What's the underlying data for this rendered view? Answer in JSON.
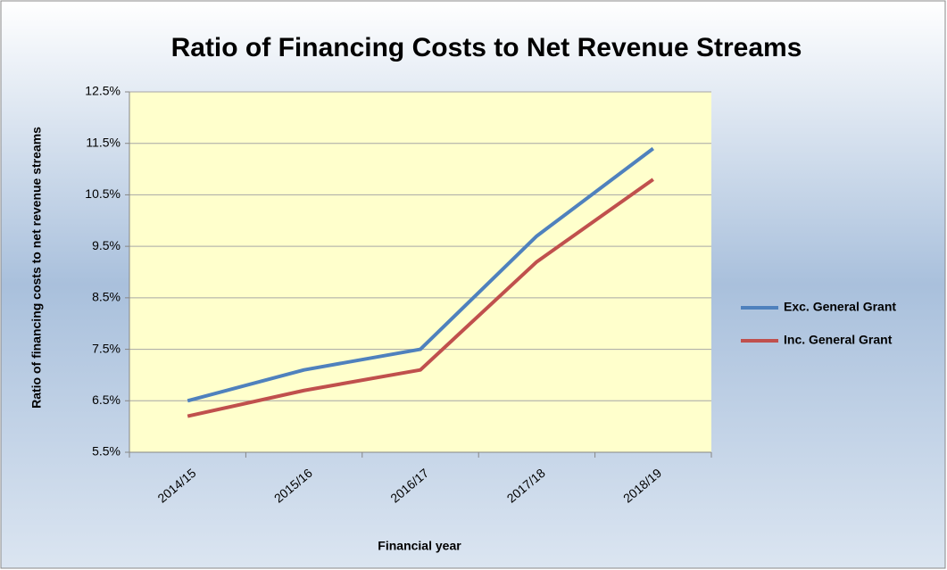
{
  "chart_data": {
    "type": "line",
    "title": "Ratio of Financing Costs to Net Revenue Streams",
    "xlabel": "Financial year",
    "ylabel": "Ratio of financing costs to net revenue streams",
    "categories": [
      "2014/15",
      "2015/16",
      "2016/17",
      "2017/18",
      "2018/19"
    ],
    "series": [
      {
        "name": "Exc. General Grant",
        "color": "#4f81bd",
        "values": [
          6.5,
          7.1,
          7.5,
          9.7,
          11.4
        ]
      },
      {
        "name": "Inc. General Grant",
        "color": "#c0504d",
        "values": [
          6.2,
          6.7,
          7.1,
          9.2,
          10.8
        ]
      }
    ],
    "ylim": [
      5.5,
      12.5
    ],
    "yticks": [
      {
        "value": 5.5,
        "label": "5.5%"
      },
      {
        "value": 6.5,
        "label": "6.5%"
      },
      {
        "value": 7.5,
        "label": "7.5%"
      },
      {
        "value": 8.5,
        "label": "8.5%"
      },
      {
        "value": 9.5,
        "label": "9.5%"
      },
      {
        "value": 10.5,
        "label": "10.5%"
      },
      {
        "value": 11.5,
        "label": "11.5%"
      },
      {
        "value": 12.5,
        "label": "12.5%"
      }
    ],
    "grid": true,
    "legend": "right"
  }
}
